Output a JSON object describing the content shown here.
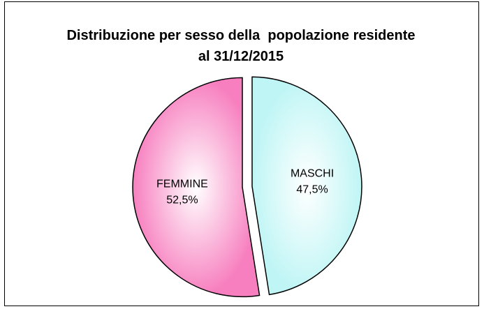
{
  "chart_data": {
    "type": "pie",
    "title": "Distribuzione per sesso della  popolazione residente al 31/12/2015",
    "categories": [
      "MASCHI",
      "FEMMINE"
    ],
    "values": [
      47.5,
      52.5
    ],
    "value_labels": [
      "47,5%",
      "52,5%"
    ],
    "colors": [
      "#bff5f5",
      "#f77fbf"
    ]
  }
}
